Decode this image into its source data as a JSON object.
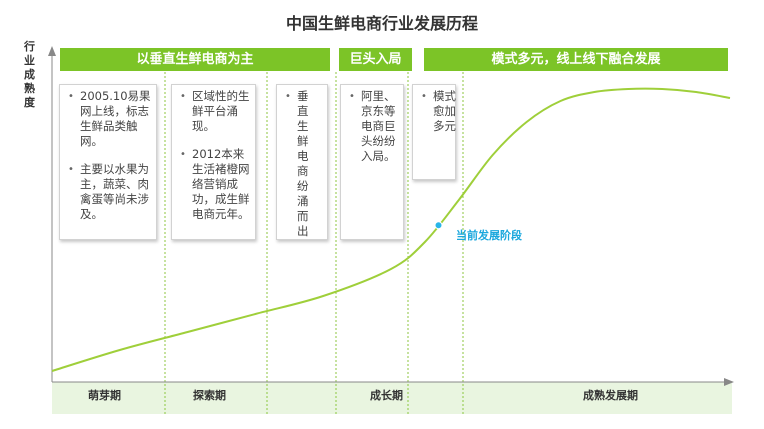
{
  "title": "中国生鲜电商行业发展历程",
  "y_axis_label": "行业成熟度",
  "banners": [
    "以垂直生鲜电商为主",
    "巨头入局",
    "模式多元，线上线下融合发展"
  ],
  "boxes": [
    {
      "items": [
        "2005.10易果网上线，标志生鲜品类触网。",
        "主要以水果为主，蔬菜、肉禽蛋等尚未涉及。"
      ]
    },
    {
      "items": [
        "区域性的生鲜平台涌现。",
        "2012本来生活褚橙网络营销成功，成生鲜电商元年。"
      ]
    },
    {
      "items": [
        "垂直生鲜电商纷涌而出"
      ]
    },
    {
      "items": [
        "阿里、京东等电商巨头纷纷入局。"
      ]
    },
    {
      "items": [
        "模式愈加多元"
      ]
    }
  ],
  "phases": [
    "萌芽期",
    "探索期",
    "成长期",
    "成熟发展期"
  ],
  "current_stage_label": "当前发展阶段",
  "colors": {
    "green": "#7cc427",
    "band": "#e9f5e0",
    "marker": "#29b6e8",
    "marker_text": "#1aa7dd"
  },
  "chart_data": {
    "type": "line",
    "title": "中国生鲜电商行业发展历程",
    "ylabel": "行业成熟度",
    "xlabel": "",
    "series": [
      {
        "name": "行业成熟度",
        "shape": "S-curve",
        "x": [
          0,
          0.1,
          0.2,
          0.3,
          0.4,
          0.5,
          0.55,
          0.6,
          0.65,
          0.7,
          0.75,
          0.8,
          0.85,
          0.9,
          0.95,
          1.0
        ],
        "values": [
          3,
          10,
          16,
          22,
          28,
          37,
          46,
          60,
          75,
          86,
          93,
          96,
          97,
          97,
          96,
          94
        ]
      }
    ],
    "phases": [
      "萌芽期",
      "探索期",
      "成长期",
      "成熟发展期"
    ],
    "annotation": {
      "label": "当前发展阶段",
      "x": 0.57
    },
    "grid": false,
    "legend": "none"
  }
}
